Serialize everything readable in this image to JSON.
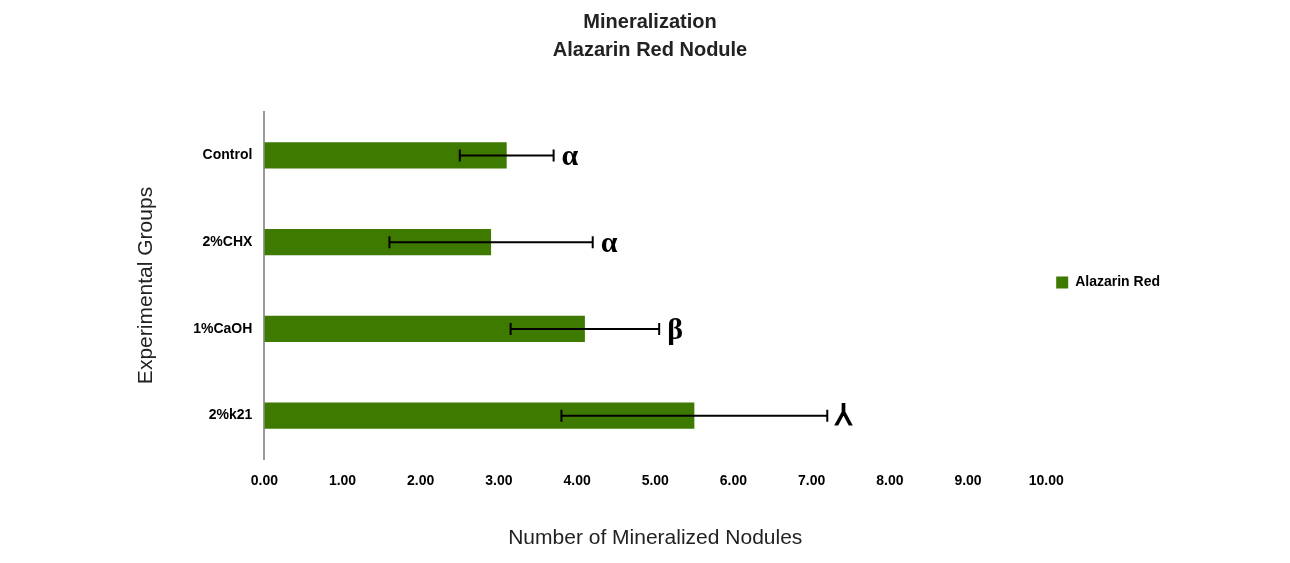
{
  "chart_data": {
    "type": "bar",
    "orientation": "horizontal",
    "title": "Mineralization",
    "subtitle": "Alazarin Red Nodule",
    "xlabel": "Number of Mineralized Nodules",
    "ylabel": "Experimental Groups",
    "categories": [
      "Control",
      "2%CHX",
      "1%CaOH",
      "2%k21"
    ],
    "series": [
      {
        "name": "Alazarin Red",
        "color": "#3f7a00",
        "values": [
          3.1,
          2.9,
          4.1,
          5.5
        ],
        "errors": [
          0.6,
          1.3,
          0.95,
          1.7
        ]
      }
    ],
    "xlim": [
      0,
      10
    ],
    "xticks": [
      {
        "value": 0,
        "label": "0.00"
      },
      {
        "value": 1,
        "label": "1.00"
      },
      {
        "value": 2,
        "label": "2.00"
      },
      {
        "value": 3,
        "label": "3.00"
      },
      {
        "value": 4,
        "label": "4.00"
      },
      {
        "value": 5,
        "label": "5.00"
      },
      {
        "value": 6,
        "label": "6.00"
      },
      {
        "value": 7,
        "label": "7.00"
      },
      {
        "value": 8,
        "label": "8.00"
      },
      {
        "value": 9,
        "label": "9.00"
      },
      {
        "value": 10,
        "label": "10.00"
      }
    ],
    "annotations": [
      {
        "text": "α",
        "x": 3.7,
        "y": "Control"
      },
      {
        "text": "α",
        "x": 4.2,
        "y": "2%CHX"
      },
      {
        "text": "β",
        "x": 5.05,
        "y": "1%CaOH"
      },
      {
        "text": "⅄",
        "x": 7.2,
        "y": "2%k21"
      }
    ],
    "grid": false,
    "legend": "right"
  }
}
